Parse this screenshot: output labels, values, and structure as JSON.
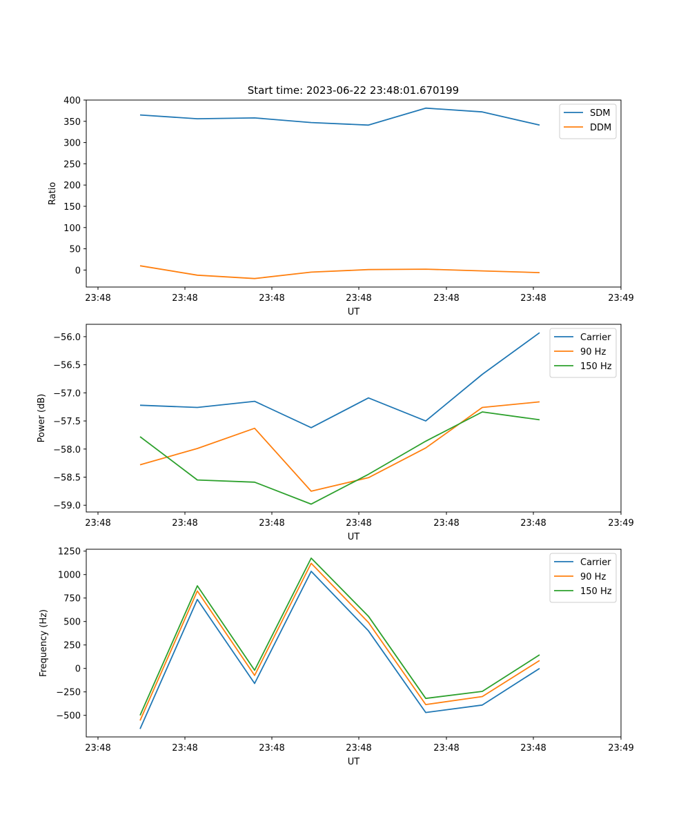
{
  "figure": {
    "title": "Start time: 2023-06-22 23:48:01.670199"
  },
  "chart_data": [
    {
      "type": "line",
      "title": "Start time: 2023-06-22 23:48:01.670199",
      "xlabel": "UT",
      "ylabel": "Ratio",
      "x_tick_labels": [
        "23:48",
        "23:48",
        "23:48",
        "23:48",
        "23:48",
        "23:48",
        "23:49"
      ],
      "y_ticks": [
        0,
        50,
        100,
        150,
        200,
        250,
        300,
        350,
        400
      ],
      "y_tick_labels": [
        "0",
        "50",
        "100",
        "150",
        "200",
        "250",
        "300",
        "350",
        "400"
      ],
      "ylim": [
        -40,
        400
      ],
      "grid": false,
      "legend_position": "top-right",
      "series": [
        {
          "name": "SDM",
          "color": "#1f77b4",
          "values": [
            365,
            356,
            358,
            347,
            341,
            381,
            372,
            341
          ]
        },
        {
          "name": "DDM",
          "color": "#ff7f0e",
          "values": [
            10,
            -12,
            -20,
            -5,
            1,
            2,
            -2,
            -6
          ]
        }
      ]
    },
    {
      "type": "line",
      "xlabel": "UT",
      "ylabel": "Power (dB)",
      "x_tick_labels": [
        "23:48",
        "23:48",
        "23:48",
        "23:48",
        "23:48",
        "23:48",
        "23:49"
      ],
      "y_ticks": [
        -59.0,
        -58.5,
        -58.0,
        -57.5,
        -57.0,
        -56.5,
        -56.0
      ],
      "y_tick_labels": [
        "−59.0",
        "−58.5",
        "−58.0",
        "−57.5",
        "−57.0",
        "−56.5",
        "−56.0"
      ],
      "ylim": [
        -59.12,
        -55.78
      ],
      "grid": false,
      "legend_position": "top-right",
      "series": [
        {
          "name": "Carrier",
          "color": "#1f77b4",
          "values": [
            -57.22,
            -57.26,
            -57.15,
            -57.62,
            -57.09,
            -57.5,
            -56.67,
            -55.93
          ]
        },
        {
          "name": "90 Hz",
          "color": "#ff7f0e",
          "values": [
            -58.28,
            -57.99,
            -57.63,
            -58.75,
            -58.51,
            -57.98,
            -57.26,
            -57.16
          ]
        },
        {
          "name": "150 Hz",
          "color": "#2ca02c",
          "values": [
            -57.78,
            -58.55,
            -58.59,
            -58.98,
            -58.45,
            -57.86,
            -57.34,
            -57.48
          ]
        }
      ]
    },
    {
      "type": "line",
      "xlabel": "UT",
      "ylabel": "Frequency (Hz)",
      "x_tick_labels": [
        "23:48",
        "23:48",
        "23:48",
        "23:48",
        "23:48",
        "23:48",
        "23:49"
      ],
      "y_ticks": [
        -500,
        -250,
        0,
        250,
        500,
        750,
        1000,
        1250
      ],
      "y_tick_labels": [
        "−500",
        "−250",
        "0",
        "250",
        "500",
        "750",
        "1000",
        "1250"
      ],
      "ylim": [
        -730,
        1270
      ],
      "grid": false,
      "legend_position": "top-right",
      "series": [
        {
          "name": "Carrier",
          "color": "#1f77b4",
          "values": [
            -645,
            735,
            -160,
            1035,
            400,
            -470,
            -390,
            0
          ]
        },
        {
          "name": "90 Hz",
          "color": "#ff7f0e",
          "values": [
            -555,
            825,
            -75,
            1120,
            490,
            -385,
            -300,
            85
          ]
        },
        {
          "name": "150 Hz",
          "color": "#2ca02c",
          "values": [
            -500,
            880,
            -20,
            1175,
            555,
            -320,
            -245,
            145
          ]
        }
      ]
    }
  ]
}
